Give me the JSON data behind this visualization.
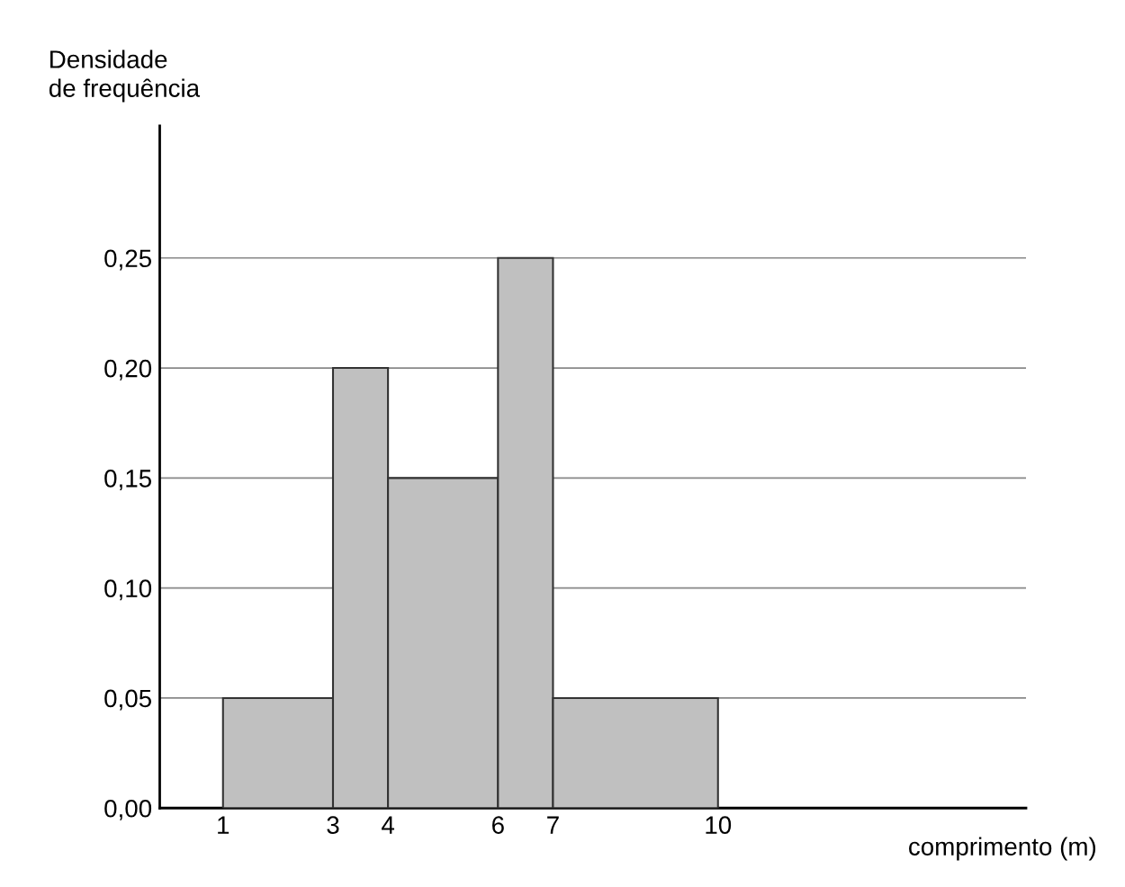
{
  "chart_data": {
    "type": "histogram",
    "xlabel": "comprimento (m)",
    "ylabel": "Densidade\nde frequência",
    "bins": [
      1,
      3,
      4,
      6,
      7,
      10
    ],
    "values": [
      0.05,
      0.2,
      0.15,
      0.25,
      0.05
    ],
    "color": "#c0c0c0",
    "xlim": [
      -0.15,
      15.6
    ],
    "ylim": [
      0,
      0.31
    ],
    "xticks": [
      1,
      3,
      4,
      6,
      7,
      10
    ],
    "yticks": [
      {
        "value": 0,
        "label": "0,00"
      },
      {
        "value": 0.05,
        "label": "0,05"
      },
      {
        "value": 0.1,
        "label": "0,10"
      },
      {
        "value": 0.15,
        "label": "0,15"
      },
      {
        "value": 0.2,
        "label": "0,20"
      },
      {
        "value": 0.25,
        "label": "0,25"
      }
    ],
    "grid": "y"
  }
}
